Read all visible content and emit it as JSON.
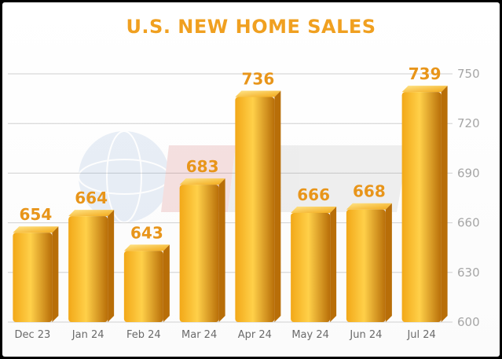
{
  "colors": {
    "title": "#F0A020",
    "data_label": "#E8951A",
    "bar_light": "#FFD049",
    "bar_mid": "#F2A818",
    "bar_dark": "#B86E08",
    "grid": "#d0d0d0"
  },
  "chart_data": {
    "type": "bar",
    "title": "U.S. NEW HOME SALES",
    "categories": [
      "Dec 23",
      "Jan 24",
      "Feb 24",
      "Mar 24",
      "Apr 24",
      "May 24",
      "Jun 24",
      "Jul 24"
    ],
    "values": [
      654,
      664,
      643,
      683,
      736,
      666,
      668,
      739
    ],
    "data_labels": [
      "654",
      "664",
      "643",
      "683",
      "736",
      "666",
      "668",
      "739"
    ],
    "ylim": [
      600,
      750
    ],
    "y_ticks": [
      600,
      630,
      660,
      690,
      720,
      750
    ],
    "y_axis_side": "right",
    "grid": true,
    "xlabel": "",
    "ylabel": ""
  }
}
